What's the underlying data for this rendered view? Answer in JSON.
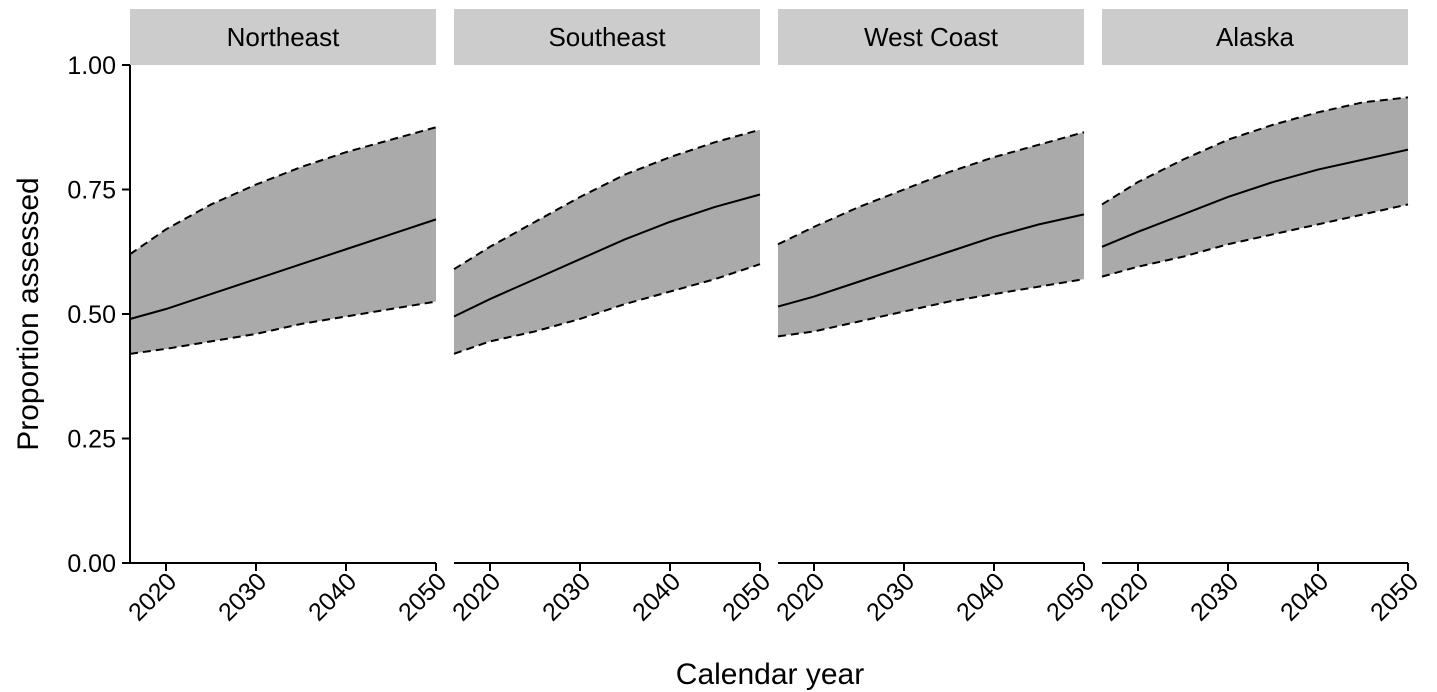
{
  "chart_data": {
    "type": "line",
    "facet_by": "region",
    "xlabel": "Calendar year",
    "ylabel": "Proportion assessed",
    "xlim": [
      2016,
      2050
    ],
    "ylim": [
      0,
      1
    ],
    "x_ticks": [
      2020,
      2030,
      2040,
      2050
    ],
    "y_ticks": [
      0,
      0.25,
      0.5,
      0.75,
      1
    ],
    "y_tick_labels": [
      "0.00",
      "0.25",
      "0.50",
      "0.75",
      "1.00"
    ],
    "line_styles": {
      "estimate": "solid",
      "interval_bounds": "dashed"
    },
    "colors": {
      "ribbon": "#aaaaaa",
      "strip": "#cccccc",
      "line": "#000000"
    },
    "grid": false,
    "x": [
      2016,
      2020,
      2025,
      2030,
      2035,
      2040,
      2045,
      2050
    ],
    "panels": [
      {
        "name": "Northeast",
        "estimate": [
          0.49,
          0.51,
          0.54,
          0.57,
          0.6,
          0.63,
          0.66,
          0.69
        ],
        "lower": [
          0.42,
          0.43,
          0.445,
          0.46,
          0.48,
          0.495,
          0.51,
          0.525
        ],
        "upper": [
          0.62,
          0.67,
          0.72,
          0.76,
          0.795,
          0.825,
          0.85,
          0.875
        ]
      },
      {
        "name": "Southeast",
        "estimate": [
          0.495,
          0.53,
          0.57,
          0.61,
          0.65,
          0.685,
          0.715,
          0.74
        ],
        "lower": [
          0.42,
          0.445,
          0.465,
          0.49,
          0.52,
          0.545,
          0.57,
          0.6
        ],
        "upper": [
          0.59,
          0.635,
          0.685,
          0.735,
          0.78,
          0.815,
          0.845,
          0.87
        ]
      },
      {
        "name": "West Coast",
        "estimate": [
          0.515,
          0.535,
          0.565,
          0.595,
          0.625,
          0.655,
          0.68,
          0.7
        ],
        "lower": [
          0.455,
          0.465,
          0.485,
          0.505,
          0.525,
          0.54,
          0.555,
          0.57
        ],
        "upper": [
          0.64,
          0.675,
          0.715,
          0.75,
          0.785,
          0.815,
          0.84,
          0.865
        ]
      },
      {
        "name": "Alaska",
        "estimate": [
          0.635,
          0.665,
          0.7,
          0.735,
          0.765,
          0.79,
          0.81,
          0.83
        ],
        "lower": [
          0.575,
          0.595,
          0.615,
          0.64,
          0.66,
          0.68,
          0.7,
          0.72
        ],
        "upper": [
          0.72,
          0.765,
          0.81,
          0.85,
          0.88,
          0.905,
          0.925,
          0.935
        ]
      }
    ]
  }
}
